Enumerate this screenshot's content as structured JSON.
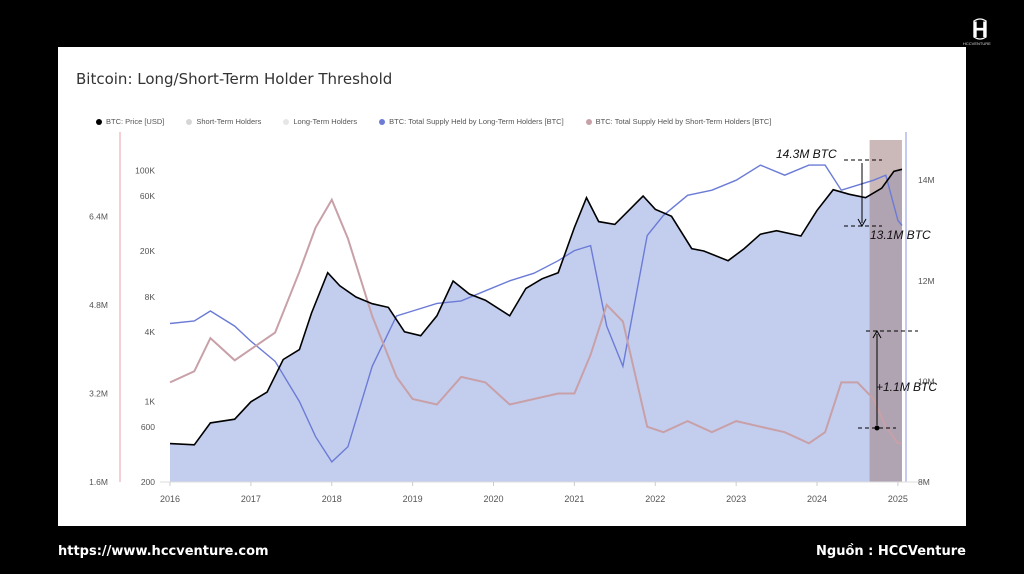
{
  "page": {
    "source_url": "https://www.hccventure.com",
    "source_credit": "Nguồn : HCCVenture",
    "logo_text": "HCCVENTURE"
  },
  "chart_data": {
    "type": "area",
    "title": "Bitcoin: Long/Short-Term Holder Threshold",
    "legend": [
      {
        "label": "BTC: Price [USD]",
        "color": "#000000"
      },
      {
        "label": "Short-Term Holders",
        "color": "#dddddd"
      },
      {
        "label": "Long-Term Holders",
        "color": "#e6e6e6"
      },
      {
        "label": "BTC: Total Supply Held by Long-Term Holders [BTC]",
        "color": "#6b7bd6"
      },
      {
        "label": "BTC: Total Supply Held by Short-Term Holders [BTC]",
        "color": "#c8a0a8"
      }
    ],
    "x_ticks": [
      "2016",
      "2017",
      "2018",
      "2019",
      "2020",
      "2021",
      "2022",
      "2023",
      "2024",
      "2025"
    ],
    "xlim": [
      2016.0,
      2025.1
    ],
    "price_axis": {
      "scale": "log",
      "ylim": [
        200,
        150000
      ],
      "ticks": [
        200,
        600,
        1000,
        4000,
        8000,
        20000,
        60000,
        100000
      ],
      "tick_labels": [
        "200",
        "600",
        "1K",
        "4K",
        "8K",
        "20K",
        "60K",
        "100K"
      ]
    },
    "lth_axis": {
      "ylim": [
        1.6,
        7.6
      ],
      "ticks": [
        1.6,
        3.2,
        4.8,
        6.4
      ],
      "tick_labels": [
        "1.6M",
        "3.2M",
        "4.8M",
        "6.4M"
      ]
    },
    "supply_axis": {
      "ylim": [
        8.0,
        14.6
      ],
      "ticks": [
        8,
        10,
        12,
        14
      ],
      "tick_labels": [
        "8M",
        "10M",
        "12M",
        "14M"
      ]
    },
    "series": [
      {
        "name": "BTC: Price [USD]",
        "color": "#000000",
        "x": [
          2016.0,
          2016.3,
          2016.5,
          2016.8,
          2017.0,
          2017.2,
          2017.4,
          2017.6,
          2017.75,
          2017.95,
          2018.1,
          2018.3,
          2018.5,
          2018.7,
          2018.9,
          2019.1,
          2019.3,
          2019.5,
          2019.7,
          2019.9,
          2020.2,
          2020.4,
          2020.6,
          2020.8,
          2021.0,
          2021.15,
          2021.3,
          2021.5,
          2021.7,
          2021.85,
          2022.0,
          2022.2,
          2022.45,
          2022.6,
          2022.9,
          2023.1,
          2023.3,
          2023.5,
          2023.8,
          2024.0,
          2024.2,
          2024.4,
          2024.6,
          2024.8,
          2024.95,
          2025.05
        ],
        "y": [
          430,
          420,
          650,
          700,
          990,
          1200,
          2300,
          2800,
          5800,
          13000,
          10000,
          8000,
          7000,
          6500,
          4000,
          3700,
          5500,
          11000,
          8500,
          7500,
          5500,
          9500,
          11500,
          13000,
          32000,
          58000,
          36000,
          34000,
          47000,
          60000,
          46000,
          40000,
          21000,
          20000,
          16500,
          21000,
          28000,
          30000,
          27000,
          45000,
          68000,
          62000,
          58000,
          70000,
          98000,
          102000
        ]
      },
      {
        "name": "BTC: Total Supply Held by Long-Term Holders [BTC]",
        "color": "#6b7bd6",
        "x": [
          2016.0,
          2016.3,
          2016.5,
          2016.8,
          2017.0,
          2017.3,
          2017.6,
          2017.8,
          2018.0,
          2018.2,
          2018.5,
          2018.8,
          2019.0,
          2019.3,
          2019.6,
          2019.9,
          2020.2,
          2020.5,
          2020.8,
          2021.0,
          2021.2,
          2021.4,
          2021.6,
          2021.9,
          2022.1,
          2022.4,
          2022.7,
          2023.0,
          2023.3,
          2023.6,
          2023.9,
          2024.1,
          2024.3,
          2024.5,
          2024.7,
          2024.85,
          2025.0,
          2025.05
        ],
        "y": [
          11.15,
          11.2,
          11.4,
          11.1,
          10.8,
          10.4,
          9.6,
          8.9,
          8.4,
          8.7,
          10.3,
          11.3,
          11.4,
          11.55,
          11.6,
          11.8,
          12.0,
          12.15,
          12.4,
          12.6,
          12.7,
          11.1,
          10.3,
          12.9,
          13.3,
          13.7,
          13.8,
          14.0,
          14.3,
          14.1,
          14.3,
          14.3,
          13.8,
          13.9,
          14.0,
          14.1,
          13.2,
          13.1
        ]
      },
      {
        "name": "BTC: Total Supply Held by Short-Term Holders [BTC]",
        "color": "#c8a0a8",
        "x": [
          2016.0,
          2016.3,
          2016.5,
          2016.8,
          2017.0,
          2017.3,
          2017.6,
          2017.8,
          2018.0,
          2018.2,
          2018.5,
          2018.8,
          2019.0,
          2019.3,
          2019.6,
          2019.9,
          2020.2,
          2020.5,
          2020.8,
          2021.0,
          2021.2,
          2021.4,
          2021.6,
          2021.9,
          2022.1,
          2022.4,
          2022.7,
          2023.0,
          2023.3,
          2023.6,
          2023.9,
          2024.1,
          2024.3,
          2024.5,
          2024.7,
          2024.85,
          2025.0,
          2025.05
        ],
        "y": [
          3.4,
          3.6,
          4.2,
          3.8,
          4.0,
          4.3,
          5.4,
          6.2,
          6.7,
          6.0,
          4.6,
          3.5,
          3.1,
          3.0,
          3.5,
          3.4,
          3.0,
          3.1,
          3.2,
          3.2,
          3.9,
          4.8,
          4.5,
          2.6,
          2.5,
          2.7,
          2.5,
          2.7,
          2.6,
          2.5,
          2.3,
          2.5,
          3.4,
          3.4,
          3.1,
          2.6,
          2.3,
          2.3
        ]
      }
    ],
    "shaded_region": {
      "x_start": 2024.65,
      "x_end": 2025.05
    },
    "annotations": [
      {
        "text": "14.3M BTC"
      },
      {
        "text": "13.1M BTC"
      },
      {
        "text": "+1.1M BTC"
      }
    ]
  }
}
